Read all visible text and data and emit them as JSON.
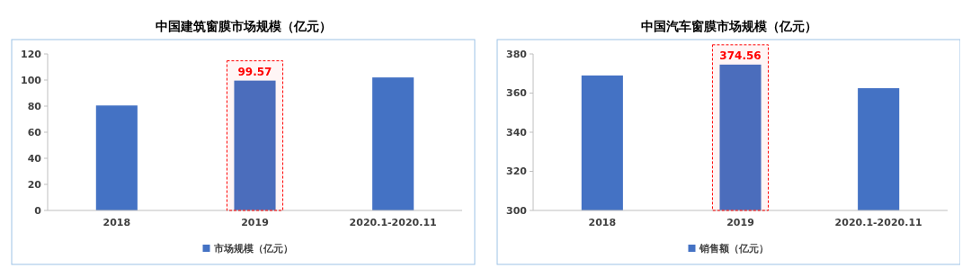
{
  "chart_data": [
    {
      "type": "bar",
      "title": "中国建筑窗膜市场规模（亿元）",
      "categories": [
        "2018",
        "2019",
        "2020.1-2020.11"
      ],
      "series": [
        {
          "name": "市场规模（亿元）",
          "color": "#4472c4",
          "values": [
            80.5,
            99.57,
            102
          ]
        }
      ],
      "value_labels": [
        null,
        "99.57",
        null
      ],
      "bands": [
        {
          "axis": "x",
          "from": "2019",
          "to": "2019",
          "color": "#ff0000"
        }
      ],
      "ylim": [
        0,
        120
      ],
      "yticks": [
        0,
        20,
        40,
        60,
        80,
        100,
        120
      ],
      "grid": false,
      "legend": "bottom"
    },
    {
      "type": "bar",
      "title": "中国汽车窗膜市场规模（亿元）",
      "categories": [
        "2018",
        "2019",
        "2020.1-2020.11"
      ],
      "series": [
        {
          "name": "销售额（亿元）",
          "color": "#4472c4",
          "values": [
            369,
            374.56,
            362.5
          ]
        }
      ],
      "value_labels": [
        null,
        "374.56",
        null
      ],
      "bands": [
        {
          "axis": "x",
          "from": "2019",
          "to": "2019",
          "color": "#ff0000"
        }
      ],
      "ylim": [
        300,
        380
      ],
      "yticks": [
        300,
        320,
        340,
        360,
        380
      ],
      "grid": false,
      "legend": "bottom"
    }
  ]
}
